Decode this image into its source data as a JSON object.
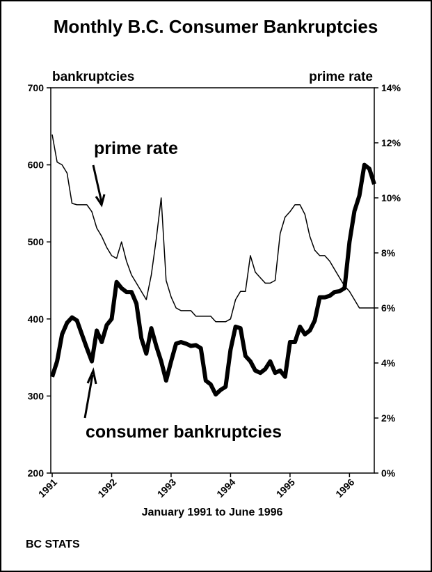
{
  "chart_data": {
    "type": "line",
    "title": "Monthly B.C. Consumer Bankruptcies",
    "y_label": "bankruptcies",
    "y2_label": "prime rate",
    "x_label": "January 1991 to June 1996",
    "source": "BC STATS",
    "annotations": [
      "prime rate",
      "consumer bankruptcies"
    ],
    "categories": [
      "1991",
      null,
      null,
      null,
      null,
      null,
      null,
      null,
      null,
      null,
      null,
      null,
      "1992",
      null,
      null,
      null,
      null,
      null,
      null,
      null,
      null,
      null,
      null,
      null,
      "1993",
      null,
      null,
      null,
      null,
      null,
      null,
      null,
      null,
      null,
      null,
      null,
      "1994",
      null,
      null,
      null,
      null,
      null,
      null,
      null,
      null,
      null,
      null,
      null,
      "1995",
      null,
      null,
      null,
      null,
      null,
      null,
      null,
      null,
      null,
      null,
      null,
      "1996",
      null,
      null,
      null,
      null,
      null
    ],
    "series": [
      {
        "name": "consumer bankruptcies",
        "color": "#000000",
        "axis": "y",
        "values": [
          325,
          345,
          380,
          395,
          402,
          398,
          380,
          362,
          345,
          385,
          370,
          392,
          400,
          448,
          440,
          435,
          435,
          420,
          375,
          355,
          388,
          365,
          345,
          320,
          345,
          368,
          370,
          368,
          365,
          366,
          362,
          320,
          315,
          302,
          308,
          312,
          360,
          390,
          388,
          352,
          345,
          333,
          330,
          335,
          345,
          330,
          333,
          325,
          370,
          370,
          390,
          380,
          385,
          398,
          428,
          428,
          430,
          435,
          436,
          440,
          500,
          540,
          560,
          600,
          595,
          575
        ]
      },
      {
        "name": "prime rate",
        "color": "#000000",
        "axis": "y2",
        "values": [
          12.3,
          11.3,
          11.2,
          10.9,
          9.8,
          9.75,
          9.75,
          9.75,
          9.5,
          8.9,
          8.6,
          8.2,
          7.9,
          7.8,
          8.4,
          7.7,
          7.2,
          6.9,
          6.6,
          6.3,
          7.2,
          8.5,
          10.0,
          7.0,
          6.4,
          6.0,
          5.9,
          5.9,
          5.9,
          5.7,
          5.7,
          5.7,
          5.7,
          5.5,
          5.5,
          5.5,
          5.6,
          6.3,
          6.6,
          6.6,
          7.9,
          7.3,
          7.1,
          6.9,
          6.9,
          7.0,
          8.7,
          9.3,
          9.5,
          9.75,
          9.75,
          9.4,
          8.6,
          8.1,
          7.9,
          7.9,
          7.7,
          7.4,
          7.1,
          6.8,
          6.6,
          6.3,
          6.0,
          6.0,
          6.0,
          6.0
        ]
      }
    ],
    "ylim": [
      200,
      700
    ],
    "yticks": [
      200,
      300,
      400,
      500,
      600,
      700
    ],
    "y2lim": [
      0,
      14
    ],
    "y2ticks": [
      {
        "value": 0,
        "label": "0%"
      },
      {
        "value": 2,
        "label": "2%"
      },
      {
        "value": 4,
        "label": "4%"
      },
      {
        "value": 6,
        "label": "6%"
      },
      {
        "value": 8,
        "label": "8%"
      },
      {
        "value": 10,
        "label": "10%"
      },
      {
        "value": 12,
        "label": "12%"
      },
      {
        "value": 14,
        "label": "14%"
      }
    ]
  }
}
